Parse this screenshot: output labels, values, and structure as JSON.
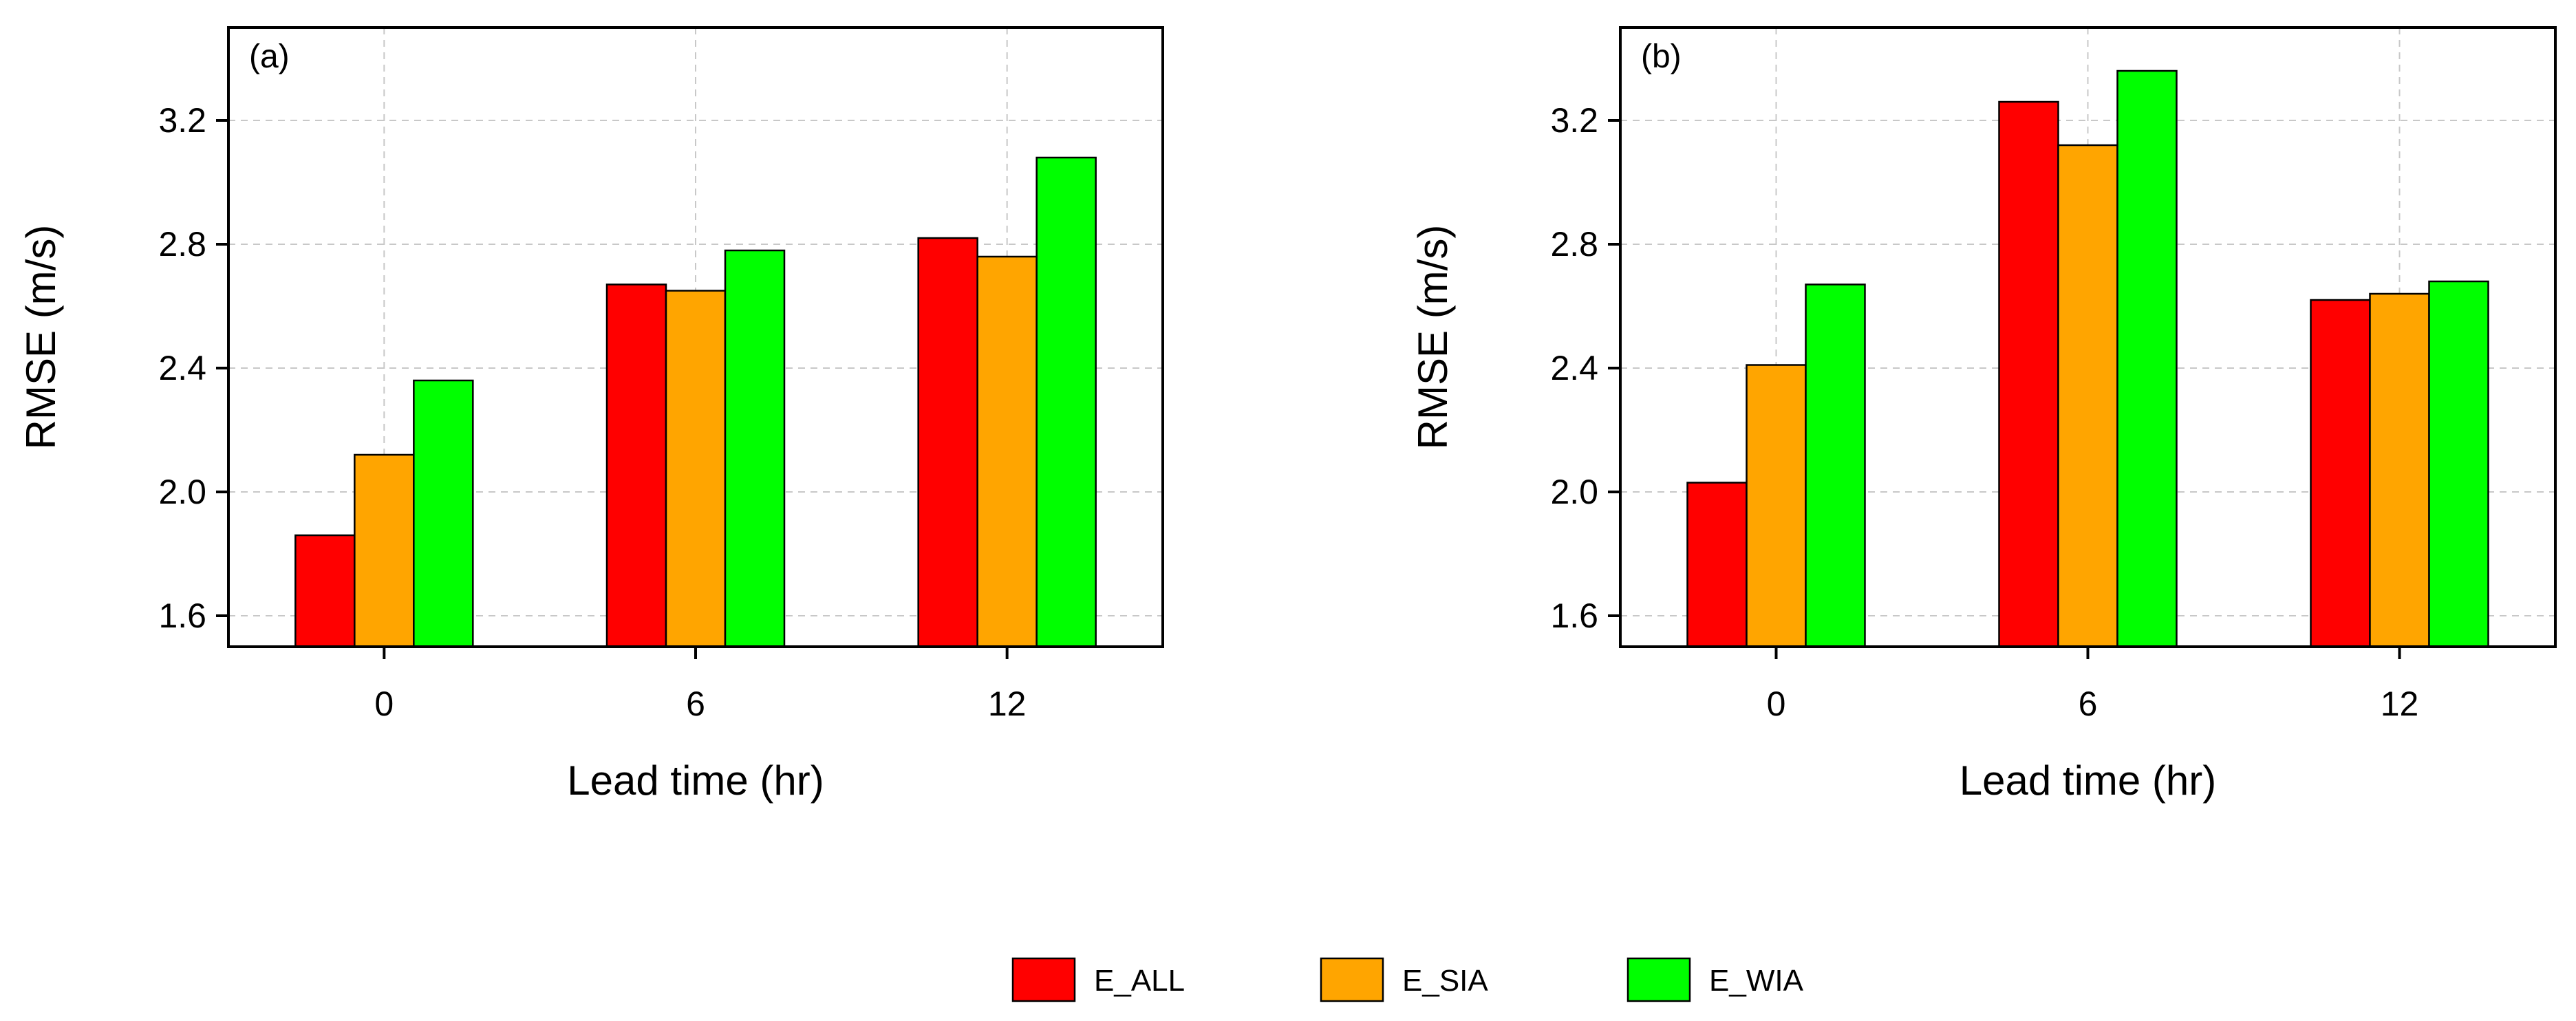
{
  "chart_data": [
    {
      "type": "bar",
      "panel_label": "(a)",
      "categories": [
        "0",
        "6",
        "12"
      ],
      "series": [
        {
          "name": "E_ALL",
          "values": [
            1.86,
            2.67,
            2.82
          ]
        },
        {
          "name": "E_SIA",
          "values": [
            2.12,
            2.65,
            2.76
          ]
        },
        {
          "name": "E_WIA",
          "values": [
            2.36,
            2.78,
            3.08
          ]
        }
      ],
      "xlabel": "Lead time (hr)",
      "ylabel": "RMSE (m/s)",
      "ylim": [
        1.5,
        3.5
      ],
      "yticks": [
        "1.6",
        "2.0",
        "2.4",
        "2.8",
        "3.2"
      ],
      "grid": true
    },
    {
      "type": "bar",
      "panel_label": "(b)",
      "categories": [
        "0",
        "6",
        "12"
      ],
      "series": [
        {
          "name": "E_ALL",
          "values": [
            2.03,
            3.26,
            2.62
          ]
        },
        {
          "name": "E_SIA",
          "values": [
            2.41,
            3.12,
            2.64
          ]
        },
        {
          "name": "E_WIA",
          "values": [
            2.67,
            3.36,
            2.68
          ]
        }
      ],
      "xlabel": "Lead time (hr)",
      "ylabel": "RMSE (m/s)",
      "ylim": [
        1.5,
        3.5
      ],
      "yticks": [
        "1.6",
        "2.0",
        "2.4",
        "2.8",
        "3.2"
      ],
      "grid": true
    }
  ],
  "legend": {
    "position": "bottom-center",
    "items": [
      {
        "label": "E_ALL",
        "color": "#ff0000"
      },
      {
        "label": "E_SIA",
        "color": "#ffa500"
      },
      {
        "label": "E_WIA",
        "color": "#00ff00"
      }
    ]
  }
}
